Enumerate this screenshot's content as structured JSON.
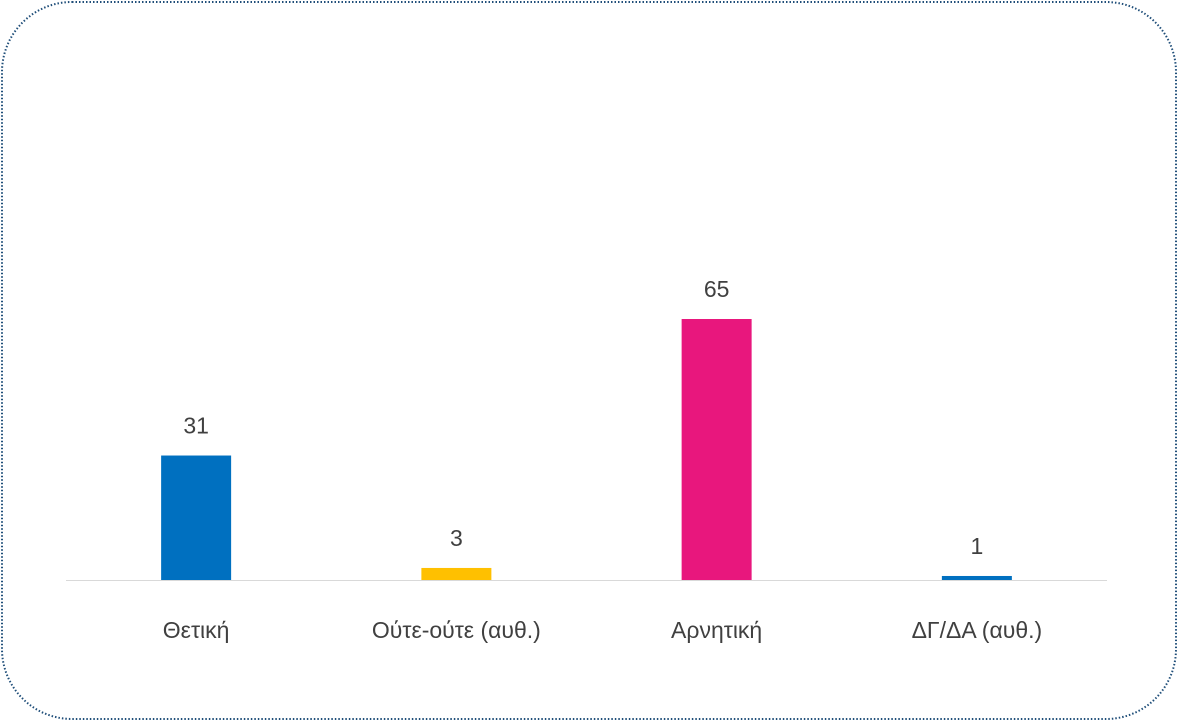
{
  "chart_data": {
    "type": "bar",
    "categories": [
      "Θετική",
      "Ούτε-ούτε (αυθ.)",
      "Αρνητική",
      "ΔΓ/ΔΑ (αυθ.)"
    ],
    "values": [
      31,
      3,
      65,
      1
    ],
    "colors": [
      "#0070c0",
      "#ffc000",
      "#e8177d",
      "#0070c0"
    ]
  }
}
